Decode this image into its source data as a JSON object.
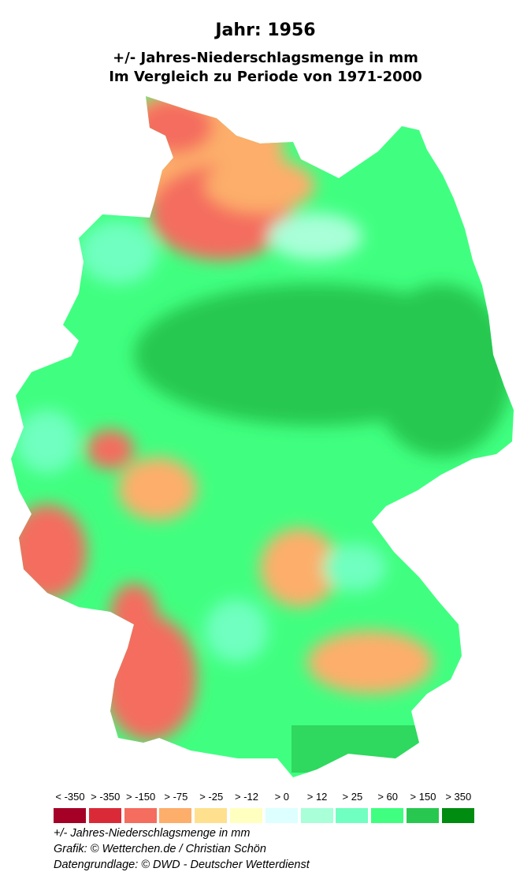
{
  "title": "Jahr: 1956",
  "subtitle_line1": "+/- Jahres-Niederschlagsmenge in mm",
  "subtitle_line2": "Im Vergleich zu Periode von 1971-2000",
  "legend": [
    {
      "label": "< -350",
      "color": "#A50026"
    },
    {
      "label": "> -350",
      "color": "#DA2A38"
    },
    {
      "label": "> -150",
      "color": "#F46D5E"
    },
    {
      "label": "> -75",
      "color": "#FDAE6B"
    },
    {
      "label": "> -25",
      "color": "#FEE08F"
    },
    {
      "label": "> -12",
      "color": "#FFFFC0"
    },
    {
      "label": "> 0",
      "color": "#DDFFFF"
    },
    {
      "label": "> 12",
      "color": "#A8FFD8"
    },
    {
      "label": "> 25",
      "color": "#70FFC0"
    },
    {
      "label": "> 60",
      "color": "#40FF80"
    },
    {
      "label": "> 150",
      "color": "#28C850"
    },
    {
      "label": "> 350",
      "color": "#008C10"
    }
  ],
  "footer": {
    "unit": "+/- Jahres-Niederschlagsmenge in mm",
    "credit": "Grafik: © Wetterchen.de / Christian Schön",
    "source": "Datengrundlage: © DWD - Deutscher Wetterdienst"
  }
}
